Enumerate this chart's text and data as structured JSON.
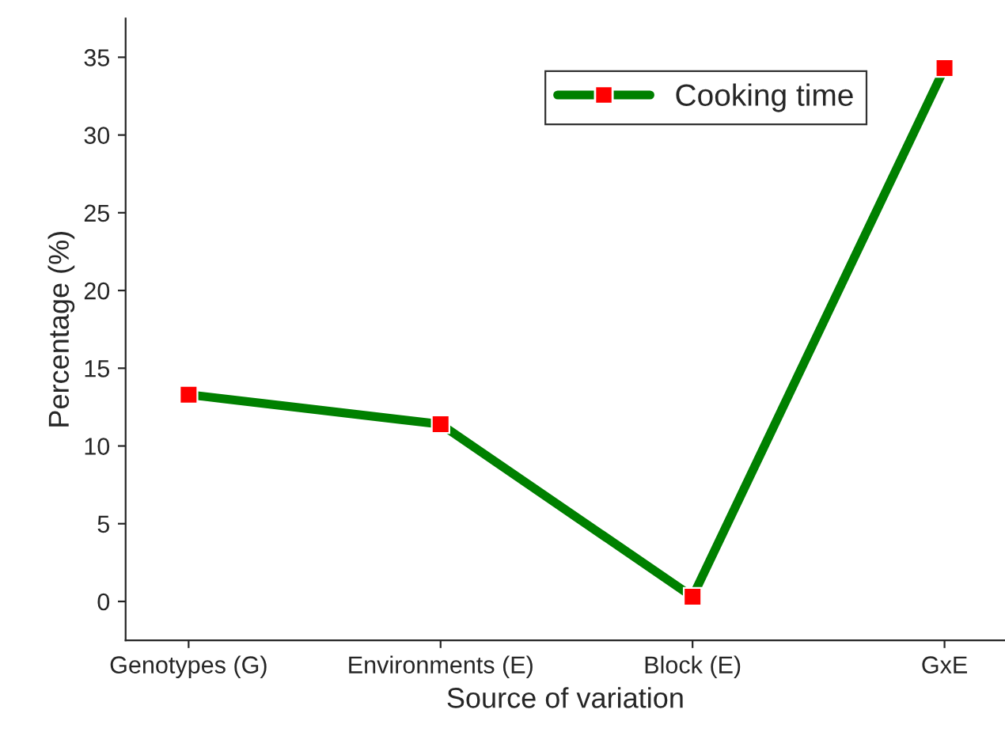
{
  "chart_data": {
    "type": "line",
    "xlabel": "Source of variation",
    "ylabel": "Percentage (%)",
    "categories": [
      "Genotypes (G)",
      "Environments (E)",
      "Block (E)",
      "GxE"
    ],
    "series": [
      {
        "name": "Cooking time",
        "color": "#008000",
        "colors": [
          "#ff0000",
          "#ff0000",
          "#ff0000",
          "#ff0000"
        ],
        "values": [
          13.3,
          11.4,
          0.3,
          34.3
        ]
      }
    ],
    "ylim": [
      -2.5,
      37.5
    ],
    "yticks": [
      0,
      5,
      10,
      15,
      20,
      25,
      30,
      35
    ],
    "marker": "square",
    "line_style": "solid",
    "grid": false,
    "legend": "top right"
  }
}
